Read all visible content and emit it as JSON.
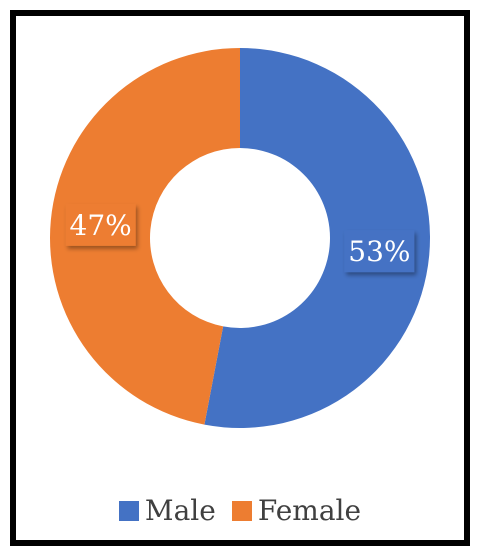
{
  "chart_data": {
    "type": "pie",
    "subtype": "donut",
    "title": "",
    "categories": [
      "Male",
      "Female"
    ],
    "values": [
      53,
      47
    ],
    "unit": "%",
    "data_labels": [
      "53%",
      "47%"
    ],
    "colors": [
      "#4472C4",
      "#ED7D31"
    ],
    "legend_position": "bottom"
  }
}
